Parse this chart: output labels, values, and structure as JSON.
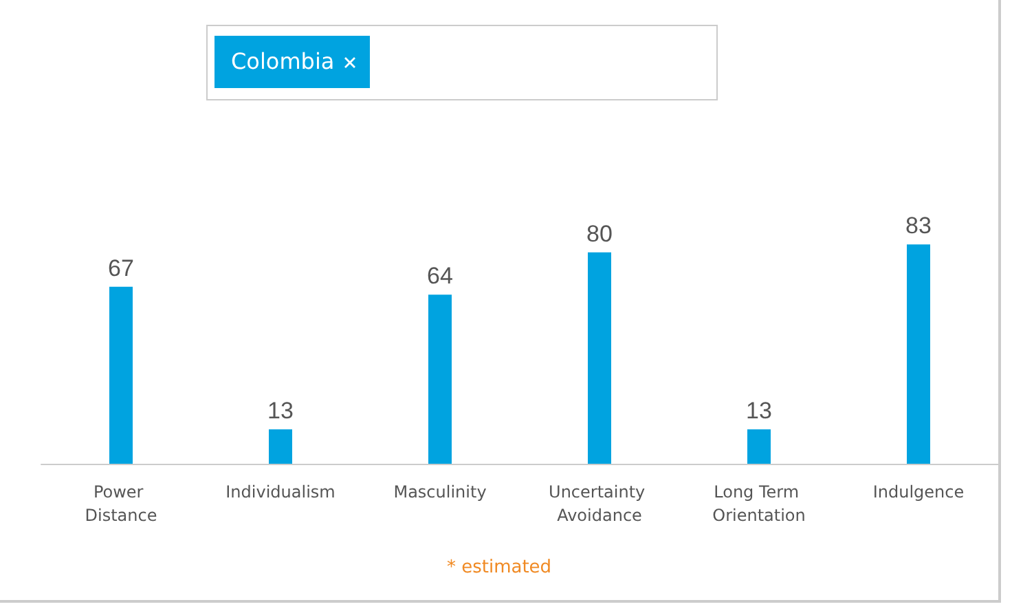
{
  "chart_data": {
    "type": "bar",
    "categories": [
      "Power Distance",
      "Individualism",
      "Masculinity",
      "Uncertainty Avoidance",
      "Long Term Orientation",
      "Indulgence"
    ],
    "series": [
      {
        "name": "Colombia",
        "color": "#00a3e0",
        "values": [
          67,
          13,
          64,
          80,
          13,
          83
        ]
      }
    ],
    "data_labels": true,
    "legend": "top",
    "annotations": [
      "* estimated"
    ]
  }
}
